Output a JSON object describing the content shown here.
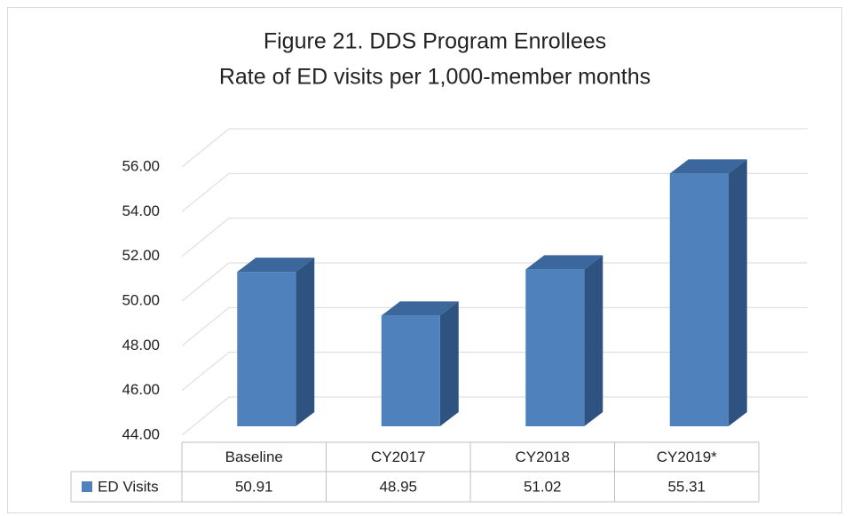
{
  "chart_data": {
    "type": "bar3d",
    "title": "Figure 21. DDS Program Enrollees",
    "subtitle": "Rate of ED visits per 1,000-member months",
    "categories": [
      "Baseline",
      "CY2017",
      "CY2018",
      "CY2019*"
    ],
    "series": [
      {
        "name": "ED Visits",
        "color": "#4f81bd",
        "values": [
          50.91,
          48.95,
          51.02,
          55.31
        ]
      }
    ],
    "ylim": [
      44,
      56
    ],
    "yticks": [
      {
        "value": 44,
        "label": "44.00"
      },
      {
        "value": 46,
        "label": "46.00"
      },
      {
        "value": 48,
        "label": "48.00"
      },
      {
        "value": 50,
        "label": "50.00"
      },
      {
        "value": 52,
        "label": "52.00"
      },
      {
        "value": 54,
        "label": "54.00"
      },
      {
        "value": 56,
        "label": "56.00"
      }
    ],
    "grid": true,
    "data_table": true
  }
}
